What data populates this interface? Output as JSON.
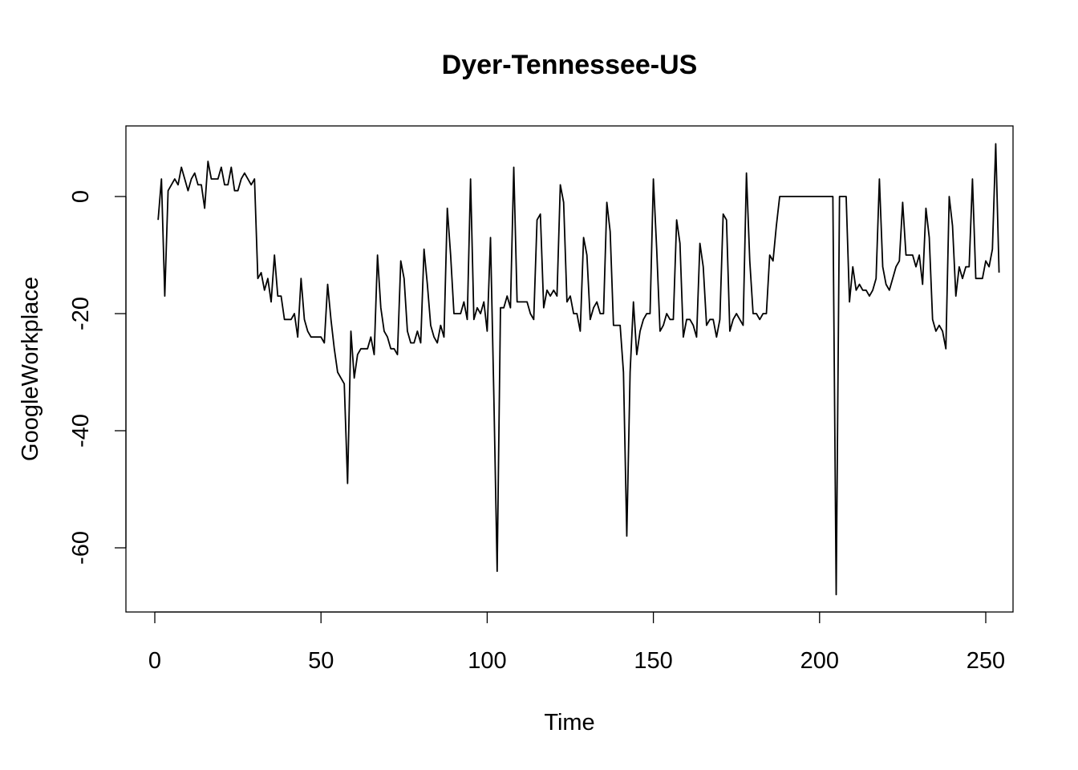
{
  "chart_data": {
    "type": "line",
    "title": "Dyer-Tennessee-US",
    "xlabel": "Time",
    "ylabel": "GoogleWorkplace",
    "xlim": [
      1,
      248
    ],
    "ylim": [
      -68,
      9
    ],
    "x_ticks": [
      0,
      50,
      100,
      150,
      200,
      250
    ],
    "y_ticks": [
      0,
      -20,
      -40,
      -60
    ],
    "grid": false,
    "legend": "none",
    "line_color": "#000000",
    "series": [
      {
        "x_start": 1,
        "values": [
          -4,
          3,
          -17,
          1,
          2,
          3,
          2,
          5,
          3,
          1,
          3,
          4,
          2,
          2,
          -2,
          6,
          3,
          3,
          3,
          5,
          2,
          2,
          5,
          1,
          1,
          3,
          4,
          3,
          2,
          3,
          -14,
          -13,
          -16,
          -14,
          -18,
          -10,
          -17,
          -17,
          -21,
          -21,
          -21,
          -20,
          -24,
          -14,
          -21,
          -23,
          -24,
          -24,
          -24,
          -24,
          -25,
          -15,
          -21,
          -26,
          -30,
          -31,
          -32,
          -49,
          -23,
          -31,
          -27,
          -26,
          -26,
          -26,
          -24,
          -27,
          -10,
          -19,
          -23,
          -24,
          -26,
          -26,
          -27,
          -11,
          -14,
          -23,
          -25,
          -25,
          -23,
          -25,
          -9,
          -15,
          -22,
          -24,
          -25,
          -22,
          -24,
          -2,
          -10,
          -20,
          -20,
          -20,
          -18,
          -21,
          3,
          -21,
          -19,
          -20,
          -18,
          -23,
          -7,
          -34,
          -64,
          -19,
          -19,
          -17,
          -19,
          5,
          -18,
          -18,
          -18,
          -18,
          -20,
          -21,
          -4,
          -3,
          -19,
          -16,
          -17,
          -16,
          -17,
          2,
          -1,
          -18,
          -17,
          -20,
          -20,
          -23,
          -7,
          -10,
          -21,
          -19,
          -18,
          -20,
          -20,
          -1,
          -6,
          -22,
          -22,
          -22,
          -30,
          -58,
          -30,
          -18,
          -27,
          -23,
          -21,
          -20,
          -20,
          3,
          -9,
          -23,
          -22,
          -20,
          -21,
          -21,
          -4,
          -8,
          -24,
          -21,
          -21,
          -22,
          -24,
          -8,
          -12,
          -22,
          -21,
          -21,
          -24,
          -21,
          -3,
          -4,
          -23,
          -21,
          -20,
          -21,
          -22,
          4,
          -11,
          -20,
          -20,
          -21,
          -20,
          -20,
          -10,
          -11,
          -5,
          0,
          0,
          0,
          0,
          0,
          0,
          0,
          0,
          0,
          0,
          0,
          0,
          0,
          0,
          0,
          0,
          0,
          -68,
          0,
          0,
          0,
          -18,
          -12,
          -16,
          -15,
          -16,
          -16,
          -17,
          -16,
          -14,
          3,
          -12,
          -15,
          -16,
          -14,
          -12,
          -11,
          -1,
          -10,
          -10,
          -10,
          -12,
          -10,
          -15,
          -2,
          -7,
          -21,
          -23,
          -22,
          -23,
          -26,
          0,
          -5,
          -17,
          -12,
          -14,
          -12,
          -12,
          3,
          -14,
          -14,
          -14,
          -11,
          -12,
          -9,
          9,
          -13
        ]
      }
    ]
  }
}
